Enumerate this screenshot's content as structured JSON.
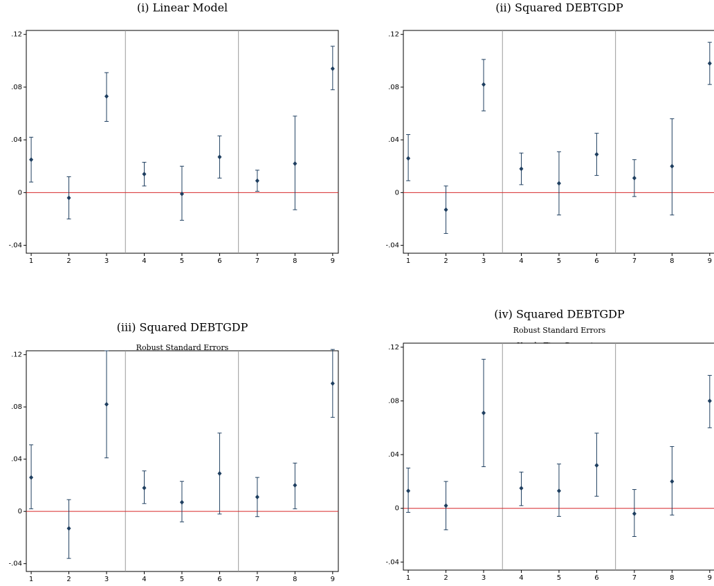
{
  "chart_data": [
    {
      "type": "errorbar",
      "title": "(i) Linear Model",
      "x": [
        1,
        2,
        3,
        4,
        5,
        6,
        7,
        8,
        9
      ],
      "values": [
        0.025,
        -0.004,
        0.073,
        0.014,
        -0.001,
        0.027,
        0.009,
        0.022,
        0.094
      ],
      "lower": [
        0.008,
        -0.02,
        0.054,
        0.005,
        -0.021,
        0.011,
        0.001,
        -0.013,
        0.078
      ],
      "upper": [
        0.042,
        0.012,
        0.091,
        0.023,
        0.02,
        0.043,
        0.017,
        0.058,
        0.111
      ],
      "color": "#1f3f60",
      "hline": 0,
      "hline_color": "#d62728",
      "vlines": [
        3.5,
        6.5
      ],
      "xlim": [
        0.87,
        9.15
      ],
      "ylim": [
        -0.046,
        0.123
      ],
      "xticks": [
        1,
        2,
        3,
        4,
        5,
        6,
        7,
        8,
        9
      ],
      "yticks": [
        {
          "value": 0.12,
          "label": ".12"
        },
        {
          "value": 0.08,
          "label": ".08"
        },
        {
          "value": 0.04,
          "label": ".04"
        },
        0,
        {
          "value": -0.04,
          "label": "-.04"
        }
      ]
    },
    {
      "type": "errorbar",
      "title": "(ii) Squared DEBTGDP",
      "x": [
        1,
        2,
        3,
        4,
        5,
        6,
        7,
        8,
        9
      ],
      "values": [
        0.026,
        -0.013,
        0.082,
        0.018,
        0.007,
        0.029,
        0.011,
        0.02,
        0.098
      ],
      "lower": [
        0.009,
        -0.031,
        0.062,
        0.006,
        -0.017,
        0.013,
        -0.003,
        -0.017,
        0.082
      ],
      "upper": [
        0.044,
        0.005,
        0.101,
        0.03,
        0.031,
        0.045,
        0.025,
        0.056,
        0.114
      ],
      "color": "#1f3f60",
      "hline": 0,
      "hline_color": "#d62728",
      "vlines": [
        3.5,
        6.5
      ],
      "xlim": [
        0.87,
        9.15
      ],
      "ylim": [
        -0.046,
        0.123
      ],
      "xticks": [
        1,
        2,
        3,
        4,
        5,
        6,
        7,
        8,
        9
      ],
      "yticks": [
        {
          "value": 0.12,
          "label": ".12"
        },
        {
          "value": 0.08,
          "label": ".08"
        },
        {
          "value": 0.04,
          "label": ".04"
        },
        0,
        {
          "value": -0.04,
          "label": "-.04"
        }
      ]
    },
    {
      "type": "errorbar",
      "title": "(iii) Squared DEBTGDP",
      "subtitles": [
        "Robust Standard Errors"
      ],
      "x": [
        1,
        2,
        3,
        4,
        5,
        6,
        7,
        8,
        9
      ],
      "values": [
        0.026,
        -0.013,
        0.082,
        0.018,
        0.007,
        0.029,
        0.011,
        0.02,
        0.098
      ],
      "lower": [
        0.002,
        -0.036,
        0.041,
        0.006,
        -0.008,
        -0.002,
        -0.004,
        0.002,
        0.072
      ],
      "upper": [
        0.051,
        0.009,
        0.123,
        0.031,
        0.023,
        0.06,
        0.026,
        0.037,
        0.124
      ],
      "color": "#1f3f60",
      "hline": 0,
      "hline_color": "#d62728",
      "vlines": [
        3.5,
        6.5
      ],
      "xlim": [
        0.87,
        9.15
      ],
      "ylim": [
        -0.046,
        0.123
      ],
      "xticks": [
        1,
        2,
        3,
        4,
        5,
        6,
        7,
        8,
        9
      ],
      "yticks": [
        {
          "value": 0.12,
          "label": ".12"
        },
        {
          "value": 0.08,
          "label": ".08"
        },
        {
          "value": 0.04,
          "label": ".04"
        },
        0,
        {
          "value": -0.04,
          "label": "-.04"
        }
      ]
    },
    {
      "type": "errorbar",
      "title": "(iv) Squared DEBTGDP",
      "subtitles": [
        "Robust Standard Errors",
        "Yearly Time Dummies"
      ],
      "x": [
        1,
        2,
        3,
        4,
        5,
        6,
        7,
        8,
        9
      ],
      "values": [
        0.013,
        0.002,
        0.071,
        0.015,
        0.013,
        0.032,
        -0.004,
        0.02,
        0.08
      ],
      "lower": [
        -0.003,
        -0.016,
        0.031,
        0.002,
        -0.006,
        0.009,
        -0.021,
        -0.005,
        0.06
      ],
      "upper": [
        0.03,
        0.02,
        0.111,
        0.027,
        0.033,
        0.056,
        0.014,
        0.046,
        0.099
      ],
      "color": "#1f3f60",
      "hline": 0,
      "hline_color": "#d62728",
      "vlines": [
        3.5,
        6.5
      ],
      "xlim": [
        0.87,
        9.15
      ],
      "ylim": [
        -0.046,
        0.123
      ],
      "xticks": [
        1,
        2,
        3,
        4,
        5,
        6,
        7,
        8,
        9
      ],
      "yticks": [
        {
          "value": 0.12,
          "label": ".12"
        },
        {
          "value": 0.08,
          "label": ".08"
        },
        {
          "value": 0.04,
          "label": ".04"
        },
        0,
        {
          "value": -0.04,
          "label": "-.04"
        }
      ]
    }
  ]
}
